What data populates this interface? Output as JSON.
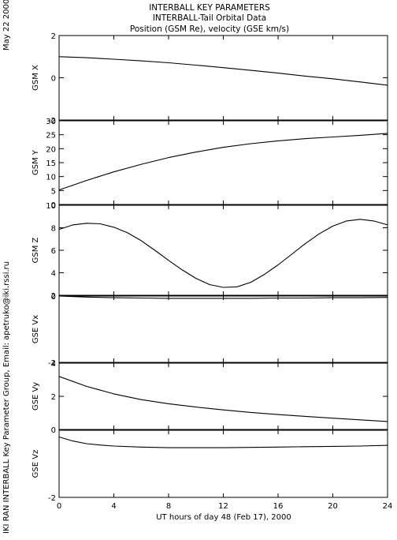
{
  "header": {
    "line1": "INTERBALL KEY PARAMETERS",
    "line2": "INTERBALL-Tail Orbital Data",
    "line3": "Position (GSM Re), velocity (GSE km/s)"
  },
  "side_date": "May 22 2000",
  "side_credit": "IKI RAN INTERBALL Key Parameter Group, Email: apetruko@iki.rssi.ru",
  "colors": {
    "line": "#000000",
    "background": "#ffffff"
  },
  "chart_data": {
    "type": "line",
    "xlabel": "UT hours of day  48 (Feb 17), 2000",
    "xlim": [
      0,
      24
    ],
    "xticks": [
      0,
      4,
      8,
      12,
      16,
      20,
      24
    ],
    "xtick_labels": [
      "0",
      "4",
      "8",
      "12",
      "16",
      "20",
      "24"
    ],
    "grid": false,
    "panels": [
      {
        "ylabel": "GSM X",
        "ylim": [
          -2,
          2
        ],
        "yticks": [
          -2,
          0,
          2
        ],
        "ytick_labels": [
          "-2",
          "0",
          "2"
        ],
        "x": [
          0,
          2,
          4,
          6,
          8,
          10,
          12,
          14,
          16,
          18,
          20,
          22,
          24
        ],
        "values": [
          1.0,
          0.95,
          0.88,
          0.8,
          0.71,
          0.6,
          0.48,
          0.35,
          0.22,
          0.08,
          -0.05,
          -0.2,
          -0.35
        ]
      },
      {
        "ylabel": "GSM Y",
        "ylim": [
          0,
          30
        ],
        "yticks": [
          0,
          5,
          10,
          15,
          20,
          25,
          30
        ],
        "ytick_labels": [
          "0",
          "5",
          "10",
          "15",
          "20",
          "25",
          "30"
        ],
        "x": [
          0,
          2,
          4,
          6,
          8,
          10,
          12,
          14,
          16,
          18,
          20,
          22,
          24
        ],
        "values": [
          5.2,
          8.6,
          11.7,
          14.4,
          16.8,
          18.8,
          20.5,
          21.8,
          22.8,
          23.6,
          24.2,
          24.8,
          25.5
        ]
      },
      {
        "ylabel": "GSM Z",
        "ylim": [
          2,
          10
        ],
        "yticks": [
          2,
          4,
          6,
          8,
          10
        ],
        "ytick_labels": [
          "2",
          "4",
          "6",
          "8",
          "10"
        ],
        "x": [
          0,
          1,
          2,
          3,
          4,
          5,
          6,
          7,
          8,
          9,
          10,
          11,
          12,
          13,
          14,
          15,
          16,
          17,
          18,
          19,
          20,
          21,
          22,
          23,
          24
        ],
        "values": [
          7.85,
          8.25,
          8.4,
          8.35,
          8.05,
          7.55,
          6.85,
          6.0,
          5.1,
          4.25,
          3.5,
          2.95,
          2.7,
          2.75,
          3.15,
          3.85,
          4.7,
          5.65,
          6.6,
          7.45,
          8.15,
          8.6,
          8.75,
          8.6,
          8.25
        ]
      },
      {
        "ylabel": "GSE Vx",
        "ylim": [
          -2,
          0
        ],
        "yticks": [
          -2,
          0
        ],
        "ytick_labels": [
          "-2",
          "0"
        ],
        "x": [
          0,
          2,
          4,
          6,
          8,
          10,
          12,
          14,
          16,
          18,
          20,
          22,
          24
        ],
        "values": [
          0.0,
          -0.03,
          -0.05,
          -0.06,
          -0.07,
          -0.07,
          -0.07,
          -0.07,
          -0.06,
          -0.06,
          -0.05,
          -0.05,
          -0.04
        ]
      },
      {
        "ylabel": "GSE Vy",
        "ylim": [
          0,
          4
        ],
        "yticks": [
          0,
          2,
          4
        ],
        "ytick_labels": [
          "0",
          "2",
          "4"
        ],
        "x": [
          0,
          2,
          4,
          6,
          8,
          10,
          12,
          14,
          16,
          18,
          20,
          22,
          24
        ],
        "values": [
          3.2,
          2.6,
          2.15,
          1.8,
          1.55,
          1.35,
          1.18,
          1.03,
          0.9,
          0.79,
          0.68,
          0.58,
          0.48
        ]
      },
      {
        "ylabel": "GSE Vz",
        "ylim": [
          -2,
          0
        ],
        "yticks": [
          -2
        ],
        "ytick_labels": [
          "-2"
        ],
        "x": [
          0,
          1,
          2,
          3,
          4,
          6,
          8,
          10,
          12,
          14,
          16,
          18,
          20,
          22,
          24
        ],
        "values": [
          -0.2,
          -0.32,
          -0.4,
          -0.44,
          -0.47,
          -0.5,
          -0.52,
          -0.52,
          -0.52,
          -0.51,
          -0.5,
          -0.49,
          -0.48,
          -0.47,
          -0.45
        ]
      }
    ]
  }
}
